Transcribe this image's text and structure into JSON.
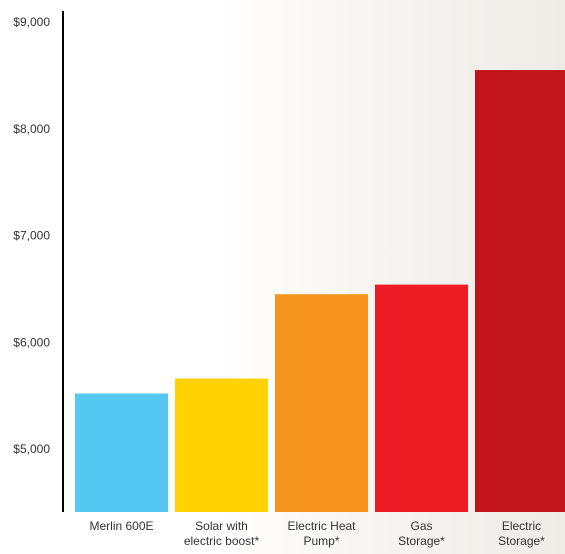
{
  "chart_data": {
    "type": "bar",
    "categories": [
      [
        "Merlin 600E"
      ],
      [
        "Solar with",
        "electric boost*"
      ],
      [
        "Electric Heat",
        "Pump*"
      ],
      [
        "Gas",
        "Storage*"
      ],
      [
        "Electric",
        "Storage*"
      ]
    ],
    "values": [
      5520,
      5660,
      6450,
      6540,
      8550
    ],
    "colors": [
      "#55c8f2",
      "#ffd200",
      "#f7941d",
      "#ed1c24",
      "#c1151b"
    ],
    "yticks": [
      {
        "value": 5000,
        "label": "$5,000"
      },
      {
        "value": 6000,
        "label": "$6,000"
      },
      {
        "value": 7000,
        "label": "$7,000"
      },
      {
        "value": 8000,
        "label": "$8,000"
      },
      {
        "value": 9000,
        "label": "$9,000"
      }
    ],
    "ylim": [
      4450,
      9000
    ],
    "grid": false,
    "title": "",
    "xlabel": "",
    "ylabel": ""
  }
}
